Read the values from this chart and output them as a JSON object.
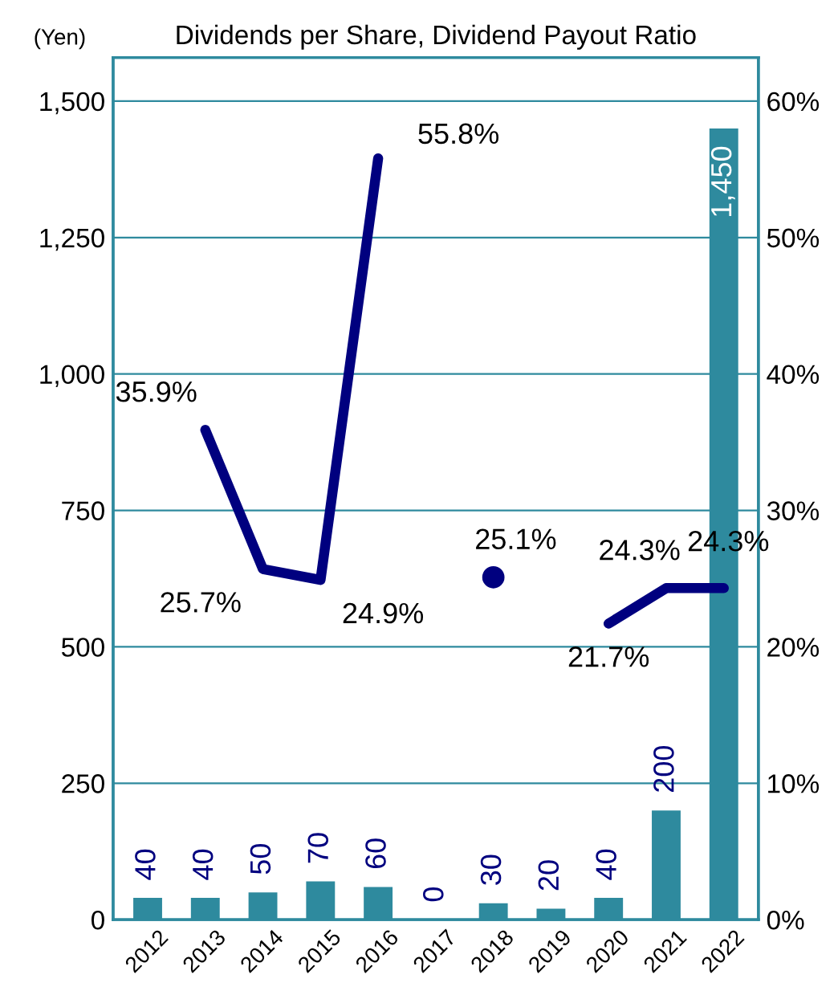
{
  "chart_data": {
    "type": "bar",
    "title": "Dividends per Share, Dividend Payout Ratio",
    "ylabel": "(Yen)",
    "categories": [
      "2012",
      "2013",
      "2014",
      "2015",
      "2016",
      "2017",
      "2018",
      "2019",
      "2020",
      "2021",
      "2022"
    ],
    "series": [
      {
        "color": "#2e8a9e",
        "values": [
          40,
          40,
          50,
          70,
          60,
          0,
          30,
          20,
          40,
          200,
          1450
        ],
        "value_labels": [
          "40",
          "40",
          "50",
          "70",
          "60",
          "0",
          "30",
          "20",
          "40",
          "200",
          "1,450"
        ]
      },
      {
        "type": "line",
        "axis": "y2",
        "color": "#00007f",
        "values": [
          null,
          35.9,
          25.7,
          24.9,
          55.8,
          null,
          25.1,
          null,
          21.7,
          24.3,
          24.3
        ],
        "value_labels": [
          null,
          "35.9%",
          "25.7%",
          "24.9%",
          "55.8%",
          null,
          "25.1%",
          null,
          "21.7%",
          "24.3%",
          "24.3%"
        ]
      }
    ],
    "ylim": [
      0,
      1580
    ],
    "yticks": [
      0,
      {
        "value": 250,
        "label": "250"
      },
      {
        "value": 500,
        "label": "500"
      },
      {
        "value": 750,
        "label": "750"
      },
      {
        "value": 1000,
        "label": "1,000"
      },
      {
        "value": 1250,
        "label": "1,250"
      },
      {
        "value": 1500,
        "label": "1,500"
      }
    ],
    "y2lim": [
      0,
      63.2
    ],
    "y2ticks": [
      {
        "value": 0,
        "label": "0%"
      },
      {
        "value": 10,
        "label": "10%"
      },
      {
        "value": 20,
        "label": "20%"
      },
      {
        "value": 30,
        "label": "30%"
      },
      {
        "value": 40,
        "label": "40%"
      },
      {
        "value": 50,
        "label": "50%"
      },
      {
        "value": 60,
        "label": "60%"
      }
    ],
    "grid": "y",
    "marker": "none",
    "line_style": "solid"
  }
}
